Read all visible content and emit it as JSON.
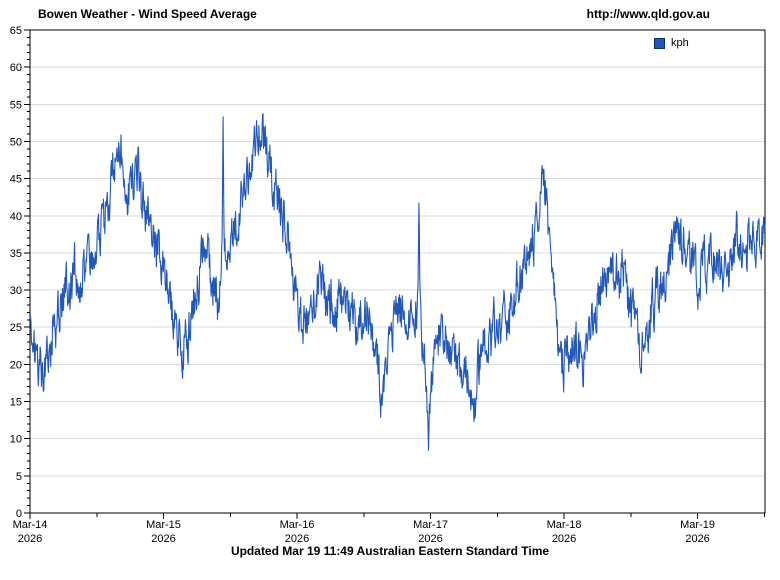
{
  "header": {
    "title": "Bowen Weather - Wind Speed Average",
    "url": "http://www.qld.gov.au"
  },
  "legend": {
    "label": "kph",
    "marker_color": "#2057b8",
    "marker_border": "#0d2f6e"
  },
  "footer": {
    "caption": "Updated Mar 19 11:49 Australian Eastern Standard Time"
  },
  "colors": {
    "line": "#2057b8",
    "grid": "#d9d9d9",
    "axis": "#000000",
    "text": "#000000",
    "background": "#ffffff"
  },
  "chart_data": {
    "type": "line",
    "title": "Bowen Weather - Wind Speed Average",
    "unit": "kph",
    "xlabel": "",
    "ylabel": "",
    "grid": "horizontal-major",
    "legend_position": "top-right",
    "legend_entries": [
      "kph"
    ],
    "ylim": [
      0,
      65
    ],
    "y_major_step": 5,
    "y_minor_step": 1,
    "y_tick_labels": [
      "0",
      "5",
      "10",
      "15",
      "20",
      "25",
      "30",
      "35",
      "40",
      "45",
      "50",
      "55",
      "60",
      "65"
    ],
    "x_range_days": [
      0,
      5.505
    ],
    "x_minor_step_days": 0.5,
    "x_major_ticks": [
      {
        "t": 0,
        "line1": "Mar-14",
        "line2": "2026"
      },
      {
        "t": 1,
        "line1": "Mar-15",
        "line2": "2026"
      },
      {
        "t": 2,
        "line1": "Mar-16",
        "line2": "2026"
      },
      {
        "t": 3,
        "line1": "Mar-17",
        "line2": "2026"
      },
      {
        "t": 4,
        "line1": "Mar-18",
        "line2": "2026"
      },
      {
        "t": 5,
        "line1": "Mar-19",
        "line2": "2026"
      }
    ],
    "series": [
      {
        "name": "kph",
        "color": "#2057b8",
        "stroke_width": 1.1,
        "sample_count": 1600,
        "value_clamp": [
          6.8,
          54.6
        ],
        "noise": {
          "seed": 1319,
          "ar_fast": 0.5,
          "sigma_fast": 2.8,
          "ar_slow": 0.96,
          "sigma_slow": 0.55
        },
        "trend_points": [
          [
            0.0,
            25
          ],
          [
            0.04,
            22
          ],
          [
            0.08,
            20.5
          ],
          [
            0.12,
            19.5
          ],
          [
            0.17,
            24
          ],
          [
            0.23,
            28
          ],
          [
            0.28,
            30
          ],
          [
            0.34,
            31.5
          ],
          [
            0.41,
            33
          ],
          [
            0.48,
            34.5
          ],
          [
            0.54,
            36.5
          ],
          [
            0.59,
            41
          ],
          [
            0.63,
            47
          ],
          [
            0.655,
            52.5
          ],
          [
            0.69,
            48
          ],
          [
            0.73,
            43.5
          ],
          [
            0.77,
            42
          ],
          [
            0.82,
            46.5
          ],
          [
            0.85,
            42
          ],
          [
            0.89,
            38.5
          ],
          [
            0.94,
            36.5
          ],
          [
            0.99,
            34
          ],
          [
            1.04,
            30
          ],
          [
            1.09,
            25
          ],
          [
            1.15,
            19.5
          ],
          [
            1.19,
            22
          ],
          [
            1.24,
            28
          ],
          [
            1.29,
            33
          ],
          [
            1.33,
            36
          ],
          [
            1.37,
            32
          ],
          [
            1.41,
            30
          ],
          [
            1.438,
            33
          ],
          [
            1.446,
            54
          ],
          [
            1.454,
            33
          ],
          [
            1.49,
            35
          ],
          [
            1.54,
            38.5
          ],
          [
            1.59,
            43
          ],
          [
            1.64,
            46.5
          ],
          [
            1.69,
            49.5
          ],
          [
            1.73,
            51
          ],
          [
            1.77,
            48
          ],
          [
            1.81,
            45.5
          ],
          [
            1.85,
            43
          ],
          [
            1.89,
            39.5
          ],
          [
            1.93,
            36
          ],
          [
            1.98,
            31.5
          ],
          [
            2.03,
            28
          ],
          [
            2.08,
            26
          ],
          [
            2.13,
            28.5
          ],
          [
            2.18,
            31.5
          ],
          [
            2.23,
            31
          ],
          [
            2.28,
            29
          ],
          [
            2.33,
            31
          ],
          [
            2.38,
            29.5
          ],
          [
            2.43,
            27
          ],
          [
            2.48,
            26
          ],
          [
            2.53,
            28
          ],
          [
            2.56,
            26
          ],
          [
            2.6,
            23
          ],
          [
            2.64,
            15.5
          ],
          [
            2.68,
            23
          ],
          [
            2.73,
            26.5
          ],
          [
            2.79,
            28.5
          ],
          [
            2.84,
            26
          ],
          [
            2.88,
            28
          ],
          [
            2.9,
            29
          ],
          [
            2.912,
            42
          ],
          [
            2.924,
            26
          ],
          [
            2.95,
            22
          ],
          [
            2.972,
            13
          ],
          [
            2.982,
            7.5
          ],
          [
            3.0,
            17
          ],
          [
            3.03,
            21.5
          ],
          [
            3.08,
            23.5
          ],
          [
            3.13,
            22
          ],
          [
            3.17,
            20
          ],
          [
            3.22,
            17
          ],
          [
            3.25,
            16
          ],
          [
            3.29,
            18.5
          ],
          [
            3.33,
            14.5
          ],
          [
            3.37,
            19
          ],
          [
            3.42,
            23
          ],
          [
            3.47,
            26
          ],
          [
            3.52,
            27.5
          ],
          [
            3.57,
            26
          ],
          [
            3.62,
            28.5
          ],
          [
            3.67,
            31
          ],
          [
            3.72,
            33.5
          ],
          [
            3.77,
            37
          ],
          [
            3.82,
            42
          ],
          [
            3.855,
            44.5
          ],
          [
            3.89,
            38
          ],
          [
            3.92,
            30
          ],
          [
            3.95,
            23
          ],
          [
            3.99,
            20.5
          ],
          [
            4.03,
            22
          ],
          [
            4.08,
            23
          ],
          [
            4.13,
            21.5
          ],
          [
            4.18,
            24
          ],
          [
            4.23,
            28
          ],
          [
            4.28,
            32
          ],
          [
            4.34,
            35.5
          ],
          [
            4.39,
            33
          ],
          [
            4.44,
            31
          ],
          [
            4.49,
            29
          ],
          [
            4.54,
            25
          ],
          [
            4.6,
            18.5
          ],
          [
            4.64,
            26
          ],
          [
            4.69,
            30
          ],
          [
            4.73,
            31.5
          ],
          [
            4.78,
            33.5
          ],
          [
            4.85,
            43.5
          ],
          [
            4.89,
            38
          ],
          [
            4.93,
            35
          ],
          [
            4.97,
            36.5
          ],
          [
            5.01,
            34
          ],
          [
            5.05,
            35.5
          ],
          [
            5.09,
            34.5
          ],
          [
            5.13,
            35
          ],
          [
            5.17,
            33.5
          ],
          [
            5.21,
            35.5
          ],
          [
            5.25,
            34
          ],
          [
            5.29,
            36.5
          ],
          [
            5.33,
            33.5
          ],
          [
            5.37,
            35
          ],
          [
            5.41,
            36
          ],
          [
            5.45,
            37.5
          ],
          [
            5.48,
            36.5
          ],
          [
            5.505,
            39.5
          ]
        ]
      }
    ]
  }
}
